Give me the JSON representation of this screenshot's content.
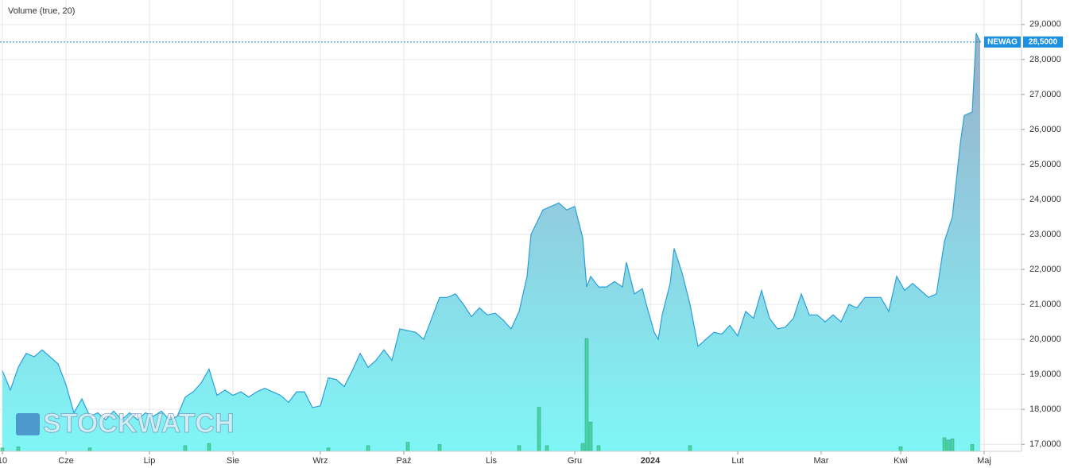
{
  "chart_data": {
    "type": "area",
    "legend_text": "Volume (true, 20)",
    "watermark": "STOCKWATCH",
    "x": [
      0,
      2,
      4,
      6,
      8,
      10,
      12,
      14,
      16,
      18,
      20,
      22,
      24,
      26,
      28,
      30,
      32,
      34,
      36,
      38,
      40,
      42,
      44,
      46,
      48,
      50,
      52,
      54,
      56,
      58,
      60,
      62,
      64,
      66,
      68,
      70,
      72,
      74,
      76,
      78,
      80,
      82,
      84,
      86,
      88,
      90,
      92,
      94,
      96,
      98,
      100,
      102,
      104,
      106,
      108,
      110,
      112,
      114,
      116,
      118,
      120,
      122,
      124,
      126,
      128,
      130,
      132,
      133,
      136,
      138,
      140,
      142,
      144,
      146,
      147,
      148,
      150,
      152,
      154,
      156,
      157,
      159,
      161,
      162,
      164,
      165,
      166,
      168,
      169,
      171,
      173,
      175,
      177,
      179,
      181,
      183,
      185,
      187,
      189,
      191,
      193,
      195,
      197,
      199,
      201,
      203,
      205,
      207,
      209,
      211,
      213,
      215,
      217,
      219,
      221,
      223,
      225,
      227,
      229,
      231,
      233,
      235,
      237,
      239,
      241,
      242,
      244,
      245,
      246
    ],
    "series": [
      {
        "name": "NEWAG",
        "color": "#2a9fd8",
        "values": [
          19.1,
          18.55,
          19.2,
          19.6,
          19.5,
          19.7,
          19.5,
          19.3,
          18.7,
          17.9,
          18.3,
          17.8,
          17.9,
          17.7,
          17.95,
          17.7,
          17.9,
          17.7,
          17.9,
          17.8,
          17.95,
          17.7,
          17.8,
          18.35,
          18.5,
          18.75,
          19.15,
          18.4,
          18.55,
          18.4,
          18.5,
          18.35,
          18.5,
          18.6,
          18.5,
          18.4,
          18.2,
          18.5,
          18.5,
          18.05,
          18.1,
          18.9,
          18.85,
          18.65,
          19.1,
          19.6,
          19.2,
          19.4,
          19.7,
          19.4,
          20.3,
          20.25,
          20.2,
          20.0,
          20.6,
          21.2,
          21.2,
          21.3,
          21.0,
          20.65,
          20.9,
          20.7,
          20.75,
          20.55,
          20.3,
          20.8,
          21.8,
          23.0,
          23.7,
          23.8,
          23.9,
          23.7,
          23.8,
          22.9,
          21.5,
          21.8,
          21.5,
          21.5,
          21.65,
          21.5,
          22.2,
          21.3,
          21.45,
          21.0,
          20.2,
          20.0,
          20.7,
          21.6,
          22.6,
          21.9,
          21.0,
          19.8,
          20.0,
          20.2,
          20.15,
          20.4,
          20.1,
          20.8,
          20.6,
          21.4,
          20.6,
          20.3,
          20.35,
          20.6,
          21.3,
          20.7,
          20.7,
          20.5,
          20.7,
          20.5,
          21.0,
          20.9,
          21.2,
          21.2,
          21.2,
          20.8,
          21.8,
          21.4,
          21.6,
          21.4,
          21.2,
          21.3,
          22.8,
          23.5,
          25.6,
          26.4,
          26.5,
          28.75,
          28.5
        ]
      },
      {
        "name": "Volume (true, 20)",
        "color": "#3ecf9a",
        "axis": "y2",
        "x": [
          0,
          4,
          22,
          46,
          52,
          82,
          92,
          102,
          110,
          130,
          135,
          137,
          146,
          147,
          148,
          150,
          173,
          226,
          237,
          238,
          239,
          244
        ],
        "values": [
          3,
          4,
          3,
          5,
          7,
          3,
          5,
          8,
          6,
          5,
          39,
          5,
          7,
          100,
          26,
          5,
          5,
          4,
          12,
          10,
          11,
          6
        ]
      }
    ],
    "last_price": {
      "name": "NEWAG",
      "value": 28.5,
      "label": "28,5000"
    },
    "xlim": [
      -0.6,
      256.4
    ],
    "xticks": [
      {
        "value": 0,
        "label": "10"
      },
      {
        "value": 16,
        "label": "Cze"
      },
      {
        "value": 37,
        "label": "Lip"
      },
      {
        "value": 58,
        "label": "Sie"
      },
      {
        "value": 80,
        "label": "Wrz"
      },
      {
        "value": 101,
        "label": "Paź"
      },
      {
        "value": 123,
        "label": "Lis"
      },
      {
        "value": 144,
        "label": "Gru"
      },
      {
        "value": 163,
        "label": "2024"
      },
      {
        "value": 185,
        "label": "Lut"
      },
      {
        "value": 206,
        "label": "Mar"
      },
      {
        "value": 226,
        "label": "Kwi"
      },
      {
        "value": 247,
        "label": "Maj"
      }
    ],
    "ylim": [
      16.8,
      29.7
    ],
    "yticks": [
      {
        "value": 17,
        "label": "17,0000"
      },
      {
        "value": 18,
        "label": "18,0000"
      },
      {
        "value": 19,
        "label": "19,0000"
      },
      {
        "value": 20,
        "label": "20,0000"
      },
      {
        "value": 21,
        "label": "21,0000"
      },
      {
        "value": 22,
        "label": "22,0000"
      },
      {
        "value": 23,
        "label": "23,0000"
      },
      {
        "value": 24,
        "label": "24,0000"
      },
      {
        "value": 25,
        "label": "25,0000"
      },
      {
        "value": 26,
        "label": "26,0000"
      },
      {
        "value": 27,
        "label": "27,0000"
      },
      {
        "value": 28,
        "label": "28,0000"
      },
      {
        "value": 29,
        "label": "29,0000"
      }
    ],
    "y2lim": [
      0,
      400
    ],
    "grid": true
  }
}
